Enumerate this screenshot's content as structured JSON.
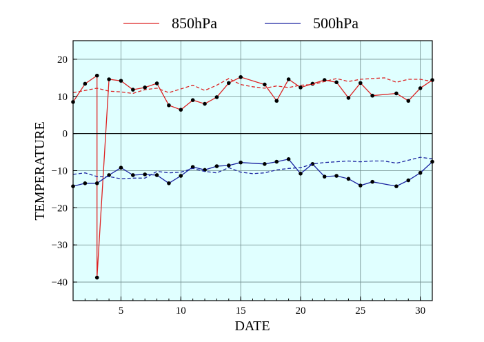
{
  "chart_data": {
    "type": "line",
    "xlabel": "DATE",
    "ylabel": "TEMPERATURE",
    "xlim": [
      1,
      31
    ],
    "ylim": [
      -45,
      25
    ],
    "x_ticks": [
      5,
      10,
      15,
      20,
      25,
      30
    ],
    "y_ticks": [
      20,
      10,
      0,
      -10,
      -20,
      -30,
      -40
    ],
    "grid": true,
    "background_color": "#e0ffff",
    "zero_line": true,
    "legend": {
      "placement": "top",
      "entries": [
        {
          "label": "850hPa",
          "color": "#dd2222"
        },
        {
          "label": "500hPa",
          "color": "#1a23a0"
        }
      ]
    },
    "series": [
      {
        "name": "850hPa",
        "color": "#dd2222",
        "style": "solid",
        "markers": true,
        "x": [
          1,
          2,
          3,
          3,
          4,
          5,
          6,
          7,
          8,
          9,
          10,
          11,
          12,
          13,
          14,
          15,
          17,
          18,
          19,
          20,
          21,
          22,
          23,
          24,
          25,
          26,
          28,
          29,
          30,
          31
        ],
        "y": [
          8.5,
          13.4,
          15.6,
          -38.8,
          14.6,
          14.2,
          11.8,
          12.4,
          13.5,
          7.6,
          6.4,
          9.0,
          8.0,
          9.8,
          13.6,
          15.2,
          13.2,
          8.8,
          14.6,
          12.4,
          13.4,
          14.4,
          13.8,
          9.6,
          13.6,
          10.2,
          10.8,
          8.8,
          12.2,
          14.4
        ]
      },
      {
        "name": "",
        "color": "#dd2222",
        "style": "dashed",
        "markers": false,
        "x": [
          1,
          2,
          3,
          4,
          5,
          6,
          7,
          8,
          9,
          10,
          11,
          12,
          13,
          14,
          15,
          16,
          17,
          18,
          19,
          20,
          21,
          22,
          23,
          24,
          25,
          26,
          27,
          28,
          29,
          30,
          31
        ],
        "y": [
          11.0,
          11.6,
          12.2,
          11.4,
          11.2,
          10.8,
          11.8,
          12.2,
          11.0,
          12.0,
          13.0,
          11.6,
          13.0,
          14.8,
          13.2,
          12.6,
          12.2,
          12.8,
          12.4,
          13.0,
          13.2,
          14.0,
          14.8,
          14.0,
          14.6,
          14.8,
          15.0,
          13.8,
          14.6,
          14.6,
          14.0
        ]
      },
      {
        "name": "500hPa",
        "color": "#1a23a0",
        "style": "solid",
        "markers": true,
        "x": [
          1,
          2,
          3,
          4,
          5,
          6,
          7,
          8,
          9,
          10,
          11,
          12,
          13,
          14,
          15,
          17,
          18,
          19,
          20,
          21,
          22,
          23,
          24,
          25,
          26,
          28,
          29,
          30,
          31
        ],
        "y": [
          -14.2,
          -13.4,
          -13.4,
          -11.2,
          -9.2,
          -11.2,
          -11.0,
          -11.2,
          -13.4,
          -11.4,
          -9.0,
          -9.8,
          -8.8,
          -8.6,
          -7.8,
          -8.2,
          -7.6,
          -6.9,
          -10.8,
          -8.2,
          -11.6,
          -11.4,
          -12.2,
          -14.0,
          -13.0,
          -14.2,
          -12.6,
          -10.6,
          -7.6
        ]
      },
      {
        "name": "",
        "color": "#1a23a0",
        "style": "dashed",
        "markers": false,
        "x": [
          1,
          2,
          3,
          4,
          5,
          6,
          7,
          8,
          9,
          10,
          11,
          12,
          13,
          14,
          15,
          16,
          17,
          18,
          19,
          20,
          21,
          22,
          23,
          24,
          25,
          26,
          27,
          28,
          29,
          30,
          31
        ],
        "y": [
          -11.0,
          -10.6,
          -11.6,
          -11.6,
          -12.2,
          -12.0,
          -12.0,
          -10.2,
          -10.6,
          -10.4,
          -9.4,
          -10.2,
          -10.6,
          -9.2,
          -10.4,
          -10.8,
          -10.6,
          -9.8,
          -9.4,
          -9.2,
          -8.2,
          -7.8,
          -7.6,
          -7.4,
          -7.6,
          -7.4,
          -7.4,
          -8.0,
          -7.2,
          -6.4,
          -6.8
        ]
      }
    ]
  }
}
